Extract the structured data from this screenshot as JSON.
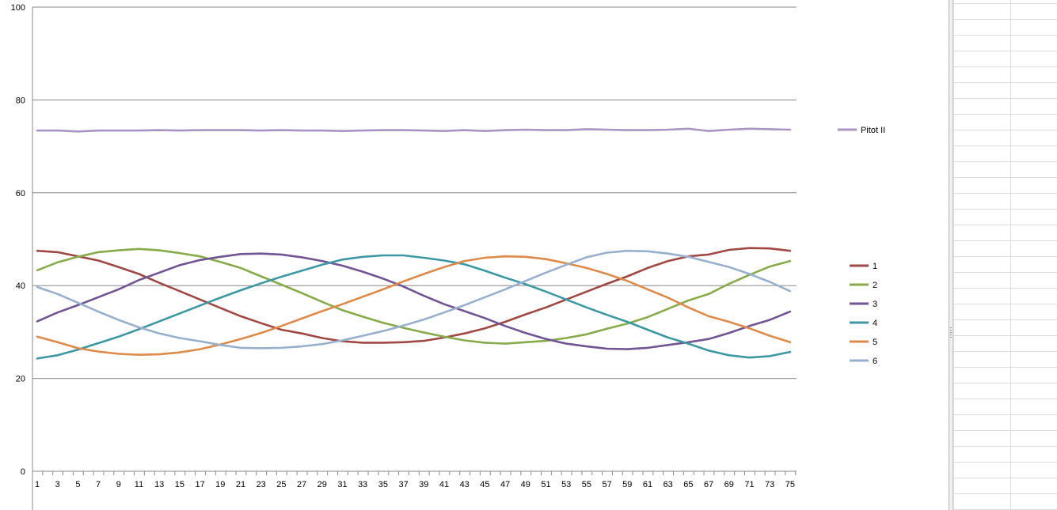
{
  "chart_data": {
    "type": "line",
    "title": "",
    "xlabel": "",
    "ylabel": "",
    "ylim": [
      0,
      100
    ],
    "y_ticks": [
      "0",
      "20",
      "40",
      "60",
      "80",
      "100"
    ],
    "x_ticks": [
      "1",
      "3",
      "5",
      "7",
      "9",
      "11",
      "13",
      "15",
      "17",
      "19",
      "21",
      "23",
      "25",
      "27",
      "29",
      "31",
      "33",
      "35",
      "37",
      "39",
      "41",
      "43",
      "45",
      "47",
      "49",
      "51",
      "53",
      "55",
      "57",
      "59",
      "61",
      "63",
      "65",
      "67",
      "69",
      "71",
      "73",
      "75"
    ],
    "x": [
      1,
      3,
      5,
      7,
      9,
      11,
      13,
      15,
      17,
      19,
      21,
      23,
      25,
      27,
      29,
      31,
      33,
      35,
      37,
      39,
      41,
      43,
      45,
      47,
      49,
      51,
      53,
      55,
      57,
      59,
      61,
      63,
      65,
      67,
      69,
      71,
      73,
      75
    ],
    "grid": true,
    "legend_placement": "right, split into two groups",
    "series": [
      {
        "name": "Pitot II",
        "color": "#a995c4",
        "legend_group": "top",
        "values": [
          73.4,
          73.4,
          73.2,
          73.4,
          73.4,
          73.4,
          73.5,
          73.4,
          73.5,
          73.5,
          73.5,
          73.4,
          73.5,
          73.4,
          73.4,
          73.3,
          73.4,
          73.5,
          73.5,
          73.4,
          73.3,
          73.5,
          73.3,
          73.5,
          73.6,
          73.5,
          73.5,
          73.7,
          73.6,
          73.5,
          73.5,
          73.6,
          73.8,
          73.3,
          73.6,
          73.8,
          73.7,
          73.6
        ]
      },
      {
        "name": "1",
        "color": "#a04844",
        "legend_group": "bottom",
        "values": [
          47.5,
          47.2,
          46.3,
          45.4,
          44.0,
          42.5,
          40.6,
          38.8,
          37.0,
          35.2,
          33.4,
          31.9,
          30.5,
          29.7,
          28.7,
          28.0,
          27.7,
          27.7,
          27.8,
          28.1,
          28.8,
          29.7,
          30.8,
          32.2,
          33.8,
          35.3,
          37.0,
          38.7,
          40.4,
          42.0,
          43.8,
          45.3,
          46.3,
          46.7,
          47.7,
          48.1,
          48.0,
          47.5
        ]
      },
      {
        "name": "2",
        "color": "#87aa4b",
        "legend_group": "bottom",
        "values": [
          43.3,
          45.0,
          46.2,
          47.2,
          47.6,
          47.9,
          47.6,
          47.0,
          46.3,
          45.1,
          43.8,
          42.0,
          40.2,
          38.4,
          36.5,
          34.7,
          33.3,
          32.0,
          30.9,
          29.9,
          29.0,
          28.2,
          27.7,
          27.5,
          27.8,
          28.1,
          28.7,
          29.5,
          30.7,
          31.8,
          33.2,
          35.0,
          36.8,
          38.2,
          40.4,
          42.3,
          44.1,
          45.3
        ]
      },
      {
        "name": "3",
        "color": "#715494",
        "legend_group": "bottom",
        "values": [
          32.3,
          34.2,
          35.8,
          37.5,
          39.2,
          41.2,
          42.8,
          44.4,
          45.5,
          46.2,
          46.8,
          46.9,
          46.7,
          46.1,
          45.3,
          44.3,
          43.0,
          41.5,
          39.8,
          37.8,
          36.0,
          34.5,
          33.0,
          31.3,
          29.8,
          28.5,
          27.5,
          26.9,
          26.4,
          26.3,
          26.6,
          27.2,
          27.8,
          28.5,
          29.8,
          31.3,
          32.6,
          34.4
        ]
      },
      {
        "name": "4",
        "color": "#3d98a4",
        "legend_group": "bottom",
        "values": [
          24.3,
          25.0,
          26.2,
          27.6,
          29.0,
          30.6,
          32.3,
          34.0,
          35.7,
          37.4,
          39.0,
          40.5,
          41.9,
          43.2,
          44.5,
          45.6,
          46.2,
          46.5,
          46.5,
          46.0,
          45.4,
          44.6,
          43.2,
          41.7,
          40.3,
          38.7,
          37.0,
          35.3,
          33.7,
          32.2,
          30.5,
          28.8,
          27.5,
          26.0,
          25.0,
          24.5,
          24.8,
          25.7
        ]
      },
      {
        "name": "5",
        "color": "#dd8a4a",
        "legend_group": "bottom",
        "values": [
          29.0,
          27.8,
          26.5,
          25.8,
          25.3,
          25.1,
          25.2,
          25.6,
          26.3,
          27.3,
          28.5,
          29.8,
          31.3,
          32.9,
          34.5,
          36.0,
          37.6,
          39.2,
          40.9,
          42.5,
          44.0,
          45.3,
          46.0,
          46.3,
          46.2,
          45.7,
          44.8,
          43.8,
          42.5,
          41.0,
          39.2,
          37.4,
          35.3,
          33.4,
          32.2,
          30.8,
          29.2,
          27.8
        ]
      },
      {
        "name": "6",
        "color": "#98b0ce",
        "legend_group": "bottom",
        "values": [
          39.7,
          38.2,
          36.3,
          34.4,
          32.6,
          31.0,
          29.7,
          28.7,
          28.0,
          27.2,
          26.6,
          26.5,
          26.6,
          26.9,
          27.4,
          28.2,
          29.2,
          30.2,
          31.4,
          32.7,
          34.2,
          35.8,
          37.5,
          39.2,
          41.0,
          42.8,
          44.5,
          46.1,
          47.1,
          47.5,
          47.4,
          46.9,
          46.2,
          45.1,
          44.0,
          42.5,
          40.8,
          38.8
        ]
      }
    ]
  },
  "sheet": {
    "splitter_label": "worksheet splitter"
  }
}
